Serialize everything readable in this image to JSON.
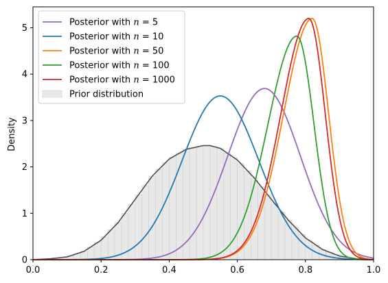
{
  "chart_data": {
    "type": "line",
    "title": "",
    "xlabel": "",
    "ylabel": "Density",
    "xlim": [
      0.0,
      1.0
    ],
    "ylim": [
      0,
      5.45
    ],
    "x_ticks": [
      "0.0",
      "0.2",
      "0.4",
      "0.6",
      "0.8",
      "1.0"
    ],
    "y_ticks": [
      "0",
      "1",
      "2",
      "3",
      "4",
      "5"
    ],
    "grid": false,
    "legend_position": "top-left",
    "series": [
      {
        "name": "Posterior with $n = 5$",
        "legend_label": "Posterior with ",
        "legend_n": "n",
        "legend_value": "= 5",
        "color": "#9467bd",
        "mode": 0.68,
        "peak": 3.69,
        "sigma_left": 0.108,
        "sigma_right": 0.105
      },
      {
        "name": "Posterior with $n = 10$",
        "legend_label": "Posterior with ",
        "legend_n": "n",
        "legend_value": "= 10",
        "color": "#1f77b4",
        "mode": 0.55,
        "peak": 3.53,
        "sigma_left": 0.112,
        "sigma_right": 0.113
      },
      {
        "name": "Posterior with $n = 50$",
        "legend_label": "Posterior with ",
        "legend_n": "n",
        "legend_value": "= 50",
        "color": "#ff7f0e",
        "mode": 0.82,
        "peak": 5.2,
        "sigma_left": 0.084,
        "sigma_right": 0.048
      },
      {
        "name": "Posterior with $n = 100$",
        "legend_label": "Posterior with ",
        "legend_n": "n",
        "legend_value": "= 100",
        "color": "#2ca02c",
        "mode": 0.775,
        "peak": 4.82,
        "sigma_left": 0.085,
        "sigma_right": 0.05
      },
      {
        "name": "Posterior with $n = 1000$",
        "legend_label": "Posterior with ",
        "legend_n": "n",
        "legend_value": "= 1000",
        "color": "#d62728",
        "mode": 0.81,
        "peak": 5.2,
        "sigma_left": 0.082,
        "sigma_right": 0.048
      }
    ],
    "prior": {
      "name": "Prior distribution",
      "hist_color": "#e8e8e8",
      "curve_color": "#4d4d4d",
      "curve_x": [
        0.0,
        0.05,
        0.1,
        0.15,
        0.2,
        0.25,
        0.3,
        0.35,
        0.4,
        0.45,
        0.5,
        0.52,
        0.55,
        0.6,
        0.65,
        0.7,
        0.75,
        0.8,
        0.85,
        0.9,
        0.95,
        1.0
      ],
      "curve_y": [
        0.0,
        0.02,
        0.06,
        0.18,
        0.42,
        0.8,
        1.3,
        1.8,
        2.17,
        2.38,
        2.46,
        2.46,
        2.4,
        2.15,
        1.76,
        1.3,
        0.85,
        0.47,
        0.22,
        0.08,
        0.02,
        0.0
      ]
    }
  }
}
